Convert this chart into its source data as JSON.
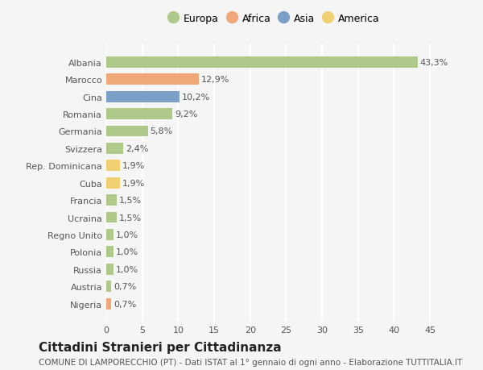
{
  "countries": [
    "Albania",
    "Marocco",
    "Cina",
    "Romania",
    "Germania",
    "Svizzera",
    "Rep. Dominicana",
    "Cuba",
    "Francia",
    "Ucraina",
    "Regno Unito",
    "Polonia",
    "Russia",
    "Austria",
    "Nigeria"
  ],
  "values": [
    43.3,
    12.9,
    10.2,
    9.2,
    5.8,
    2.4,
    1.9,
    1.9,
    1.5,
    1.5,
    1.0,
    1.0,
    1.0,
    0.7,
    0.7
  ],
  "labels": [
    "43,3%",
    "12,9%",
    "10,2%",
    "9,2%",
    "5,8%",
    "2,4%",
    "1,9%",
    "1,9%",
    "1,5%",
    "1,5%",
    "1,0%",
    "1,0%",
    "1,0%",
    "0,7%",
    "0,7%"
  ],
  "continents": [
    "Europa",
    "Africa",
    "Asia",
    "Europa",
    "Europa",
    "Europa",
    "America",
    "America",
    "Europa",
    "Europa",
    "Europa",
    "Europa",
    "Europa",
    "Europa",
    "Africa"
  ],
  "continent_colors": {
    "Europa": "#aec98a",
    "Africa": "#f0a878",
    "Asia": "#7b9fc7",
    "America": "#f0d070"
  },
  "legend_order": [
    "Europa",
    "Africa",
    "Asia",
    "America"
  ],
  "background_color": "#f5f5f5",
  "grid_color": "#ffffff",
  "title": "Cittadini Stranieri per Cittadinanza",
  "subtitle": "COMUNE DI LAMPORECCHIO (PT) - Dati ISTAT al 1° gennaio di ogni anno - Elaborazione TUTTITALIA.IT",
  "xlim": [
    0,
    47
  ],
  "xticks": [
    0,
    5,
    10,
    15,
    20,
    25,
    30,
    35,
    40,
    45
  ],
  "bar_height": 0.65,
  "title_fontsize": 11,
  "subtitle_fontsize": 7.5,
  "label_fontsize": 8,
  "tick_fontsize": 8,
  "legend_fontsize": 9
}
